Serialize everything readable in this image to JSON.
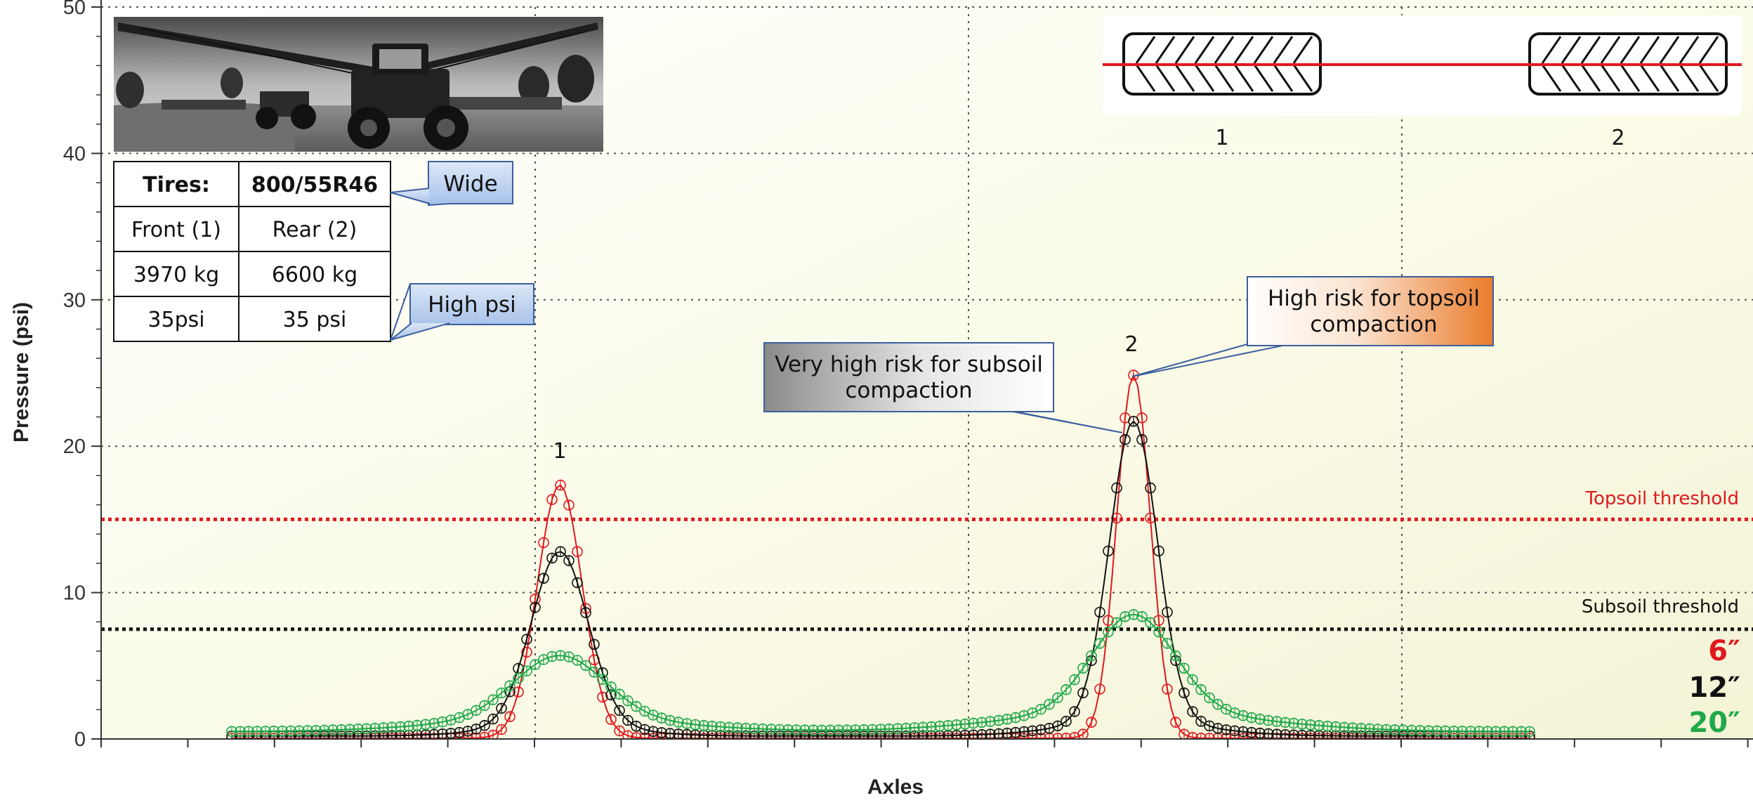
{
  "chart_data": {
    "type": "line",
    "title": "",
    "xlabel": "Axles",
    "ylabel": "Pressure (psi)",
    "ylim": [
      0,
      50
    ],
    "yticks": [
      0,
      10,
      20,
      30,
      40,
      50
    ],
    "grid": true,
    "series": [
      {
        "name": "6″",
        "color": "#e0191e",
        "amplitude": 17.3,
        "base": 0.05,
        "peaks": [
          {
            "axle": 1,
            "max": 17.3
          },
          {
            "axle": 2,
            "max": 24.8
          }
        ]
      },
      {
        "name": "12″",
        "color": "#111111",
        "amplitude": 11.8,
        "base": 0.2,
        "peaks": [
          {
            "axle": 1,
            "max": 11.8
          },
          {
            "axle": 2,
            "max": 20.5
          }
        ]
      },
      {
        "name": "20″",
        "color": "#1fa84a",
        "amplitude": 4.3,
        "base": 0.5,
        "peaks": [
          {
            "axle": 1,
            "max": 4.3
          },
          {
            "axle": 2,
            "max": 6.6
          }
        ]
      }
    ],
    "thresholds": [
      {
        "label": "Topsoil threshold",
        "value": 15,
        "color": "#e0191e"
      },
      {
        "label": "Subsoil threshold",
        "value": 7.5,
        "color": "#111111"
      }
    ],
    "peak_labels": [
      "1",
      "2"
    ],
    "axle_labels": [
      "1",
      "2"
    ],
    "annotations": {
      "topsoil": [
        "High risk for topsoil",
        "compaction"
      ],
      "subsoil": [
        "Very high risk for subsoil",
        "compaction"
      ],
      "wide": "Wide",
      "high_psi": "High psi"
    },
    "table": {
      "header": [
        "Tires:",
        "800/55R46"
      ],
      "rows": [
        [
          "Front (1)",
          "Rear (2)"
        ],
        [
          "3970 kg",
          "6600 kg"
        ],
        [
          "35psi",
          "35 psi"
        ]
      ]
    }
  }
}
